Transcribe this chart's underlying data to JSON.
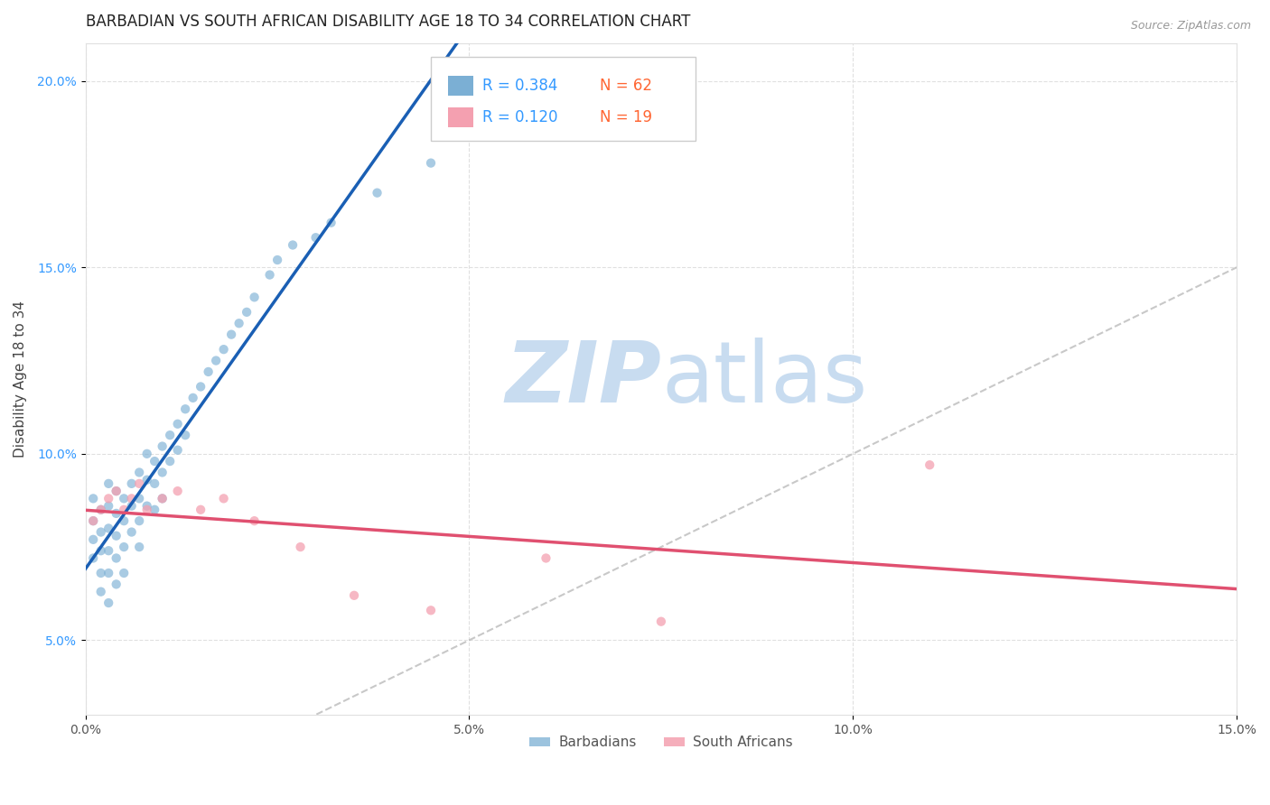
{
  "title": "BARBADIAN VS SOUTH AFRICAN DISABILITY AGE 18 TO 34 CORRELATION CHART",
  "source_text": "Source: ZipAtlas.com",
  "ylabel": "Disability Age 18 to 34",
  "xlim": [
    0.0,
    0.15
  ],
  "ylim": [
    0.03,
    0.21
  ],
  "xticks": [
    0.0,
    0.05,
    0.1,
    0.15
  ],
  "xtick_labels": [
    "0.0%",
    "5.0%",
    "10.0%",
    "15.0%"
  ],
  "yticks": [
    0.05,
    0.1,
    0.15,
    0.2
  ],
  "ytick_labels": [
    "5.0%",
    "10.0%",
    "15.0%",
    "20.0%"
  ],
  "barbadian_color": "#7BAFD4",
  "south_african_color": "#F4A0B0",
  "barbadian_line_color": "#1A5FB4",
  "south_african_line_color": "#E05070",
  "dashed_line_color": "#BBBBBB",
  "legend_r1": "R = 0.384",
  "legend_n1": "N = 62",
  "legend_r2": "R = 0.120",
  "legend_n2": "N = 19",
  "r_color": "#3399FF",
  "n_color": "#FF6633",
  "watermark_zip_color": "#C8DCF0",
  "watermark_atlas_color": "#C8DCF0",
  "background_color": "#FFFFFF",
  "grid_color": "#E0E0E0",
  "title_color": "#222222",
  "tick_color_x": "#555555",
  "tick_color_y": "#3399FF",
  "barbadian_x": [
    0.001,
    0.001,
    0.001,
    0.001,
    0.002,
    0.002,
    0.002,
    0.002,
    0.002,
    0.003,
    0.003,
    0.003,
    0.003,
    0.003,
    0.003,
    0.004,
    0.004,
    0.004,
    0.004,
    0.004,
    0.005,
    0.005,
    0.005,
    0.005,
    0.006,
    0.006,
    0.006,
    0.007,
    0.007,
    0.007,
    0.007,
    0.008,
    0.008,
    0.008,
    0.009,
    0.009,
    0.009,
    0.01,
    0.01,
    0.01,
    0.011,
    0.011,
    0.012,
    0.012,
    0.013,
    0.013,
    0.014,
    0.015,
    0.016,
    0.017,
    0.018,
    0.019,
    0.02,
    0.021,
    0.022,
    0.024,
    0.025,
    0.027,
    0.03,
    0.032,
    0.038,
    0.045
  ],
  "barbadian_y": [
    0.088,
    0.082,
    0.077,
    0.072,
    0.085,
    0.079,
    0.074,
    0.068,
    0.063,
    0.092,
    0.086,
    0.08,
    0.074,
    0.068,
    0.06,
    0.09,
    0.084,
    0.078,
    0.072,
    0.065,
    0.088,
    0.082,
    0.075,
    0.068,
    0.092,
    0.086,
    0.079,
    0.095,
    0.088,
    0.082,
    0.075,
    0.1,
    0.093,
    0.086,
    0.098,
    0.092,
    0.085,
    0.102,
    0.095,
    0.088,
    0.105,
    0.098,
    0.108,
    0.101,
    0.112,
    0.105,
    0.115,
    0.118,
    0.122,
    0.125,
    0.128,
    0.132,
    0.135,
    0.138,
    0.142,
    0.148,
    0.152,
    0.156,
    0.158,
    0.162,
    0.17,
    0.178
  ],
  "south_african_x": [
    0.001,
    0.002,
    0.003,
    0.004,
    0.005,
    0.006,
    0.007,
    0.008,
    0.01,
    0.012,
    0.015,
    0.018,
    0.022,
    0.028,
    0.035,
    0.045,
    0.06,
    0.075,
    0.11
  ],
  "south_african_y": [
    0.082,
    0.085,
    0.088,
    0.09,
    0.085,
    0.088,
    0.092,
    0.085,
    0.088,
    0.09,
    0.085,
    0.088,
    0.082,
    0.075,
    0.062,
    0.058,
    0.072,
    0.055,
    0.097
  ],
  "title_fontsize": 12,
  "axis_label_fontsize": 11,
  "tick_fontsize": 10,
  "legend_fontsize": 11
}
